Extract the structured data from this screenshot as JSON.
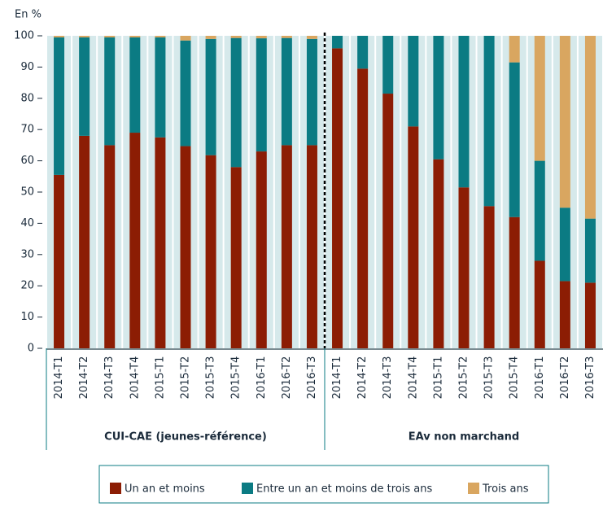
{
  "chart_data": {
    "type": "stacked_bar",
    "y_label": "En %",
    "categories": [
      "2014-T1",
      "2014-T2",
      "2014-T3",
      "2014-T4",
      "2015-T1",
      "2015-T2",
      "2015-T3",
      "2015-T4",
      "2016-T1",
      "2016-T2",
      "2016-T3",
      "2014-T1",
      "2014-T2",
      "2014-T3",
      "2014-T4",
      "2015-T1",
      "2015-T2",
      "2015-T3",
      "2015-T4",
      "2016-T1",
      "2016-T2",
      "2016-T3"
    ],
    "groups": [
      "CUI-CAE (jeunes-référence)",
      "EAv non marchand"
    ],
    "series": [
      {
        "name": "Un an et moins",
        "color": "#8c1d04",
        "values": [
          55.5,
          68,
          65,
          69,
          67.5,
          64.7,
          61.8,
          58,
          63,
          65,
          65,
          96,
          89.5,
          81.5,
          71,
          60.5,
          51.5,
          45.5,
          42,
          28,
          21.5,
          21
        ]
      },
      {
        "name": "Entre un an et moins de trois ans",
        "color": "#0b7b83",
        "values": [
          44,
          31.5,
          34.5,
          30.5,
          32,
          33.8,
          37.2,
          41.3,
          36.2,
          34.3,
          34,
          4,
          10.5,
          18.5,
          29,
          39.5,
          48.5,
          54.5,
          49.5,
          32,
          23.5,
          20.5
        ]
      },
      {
        "name": "Trois ans",
        "color": "#d9a660",
        "values": [
          0.5,
          0.5,
          0.5,
          0.5,
          0.5,
          1.5,
          1,
          0.7,
          0.8,
          0.7,
          1,
          0,
          0,
          0,
          0,
          0,
          0,
          0,
          8.5,
          40,
          55,
          58.5
        ]
      }
    ],
    "ylim": [
      0,
      100
    ],
    "yticks": [
      0,
      10,
      20,
      30,
      40,
      50,
      60,
      70,
      80,
      90,
      100
    ],
    "band_color": "#d6e9eb"
  }
}
